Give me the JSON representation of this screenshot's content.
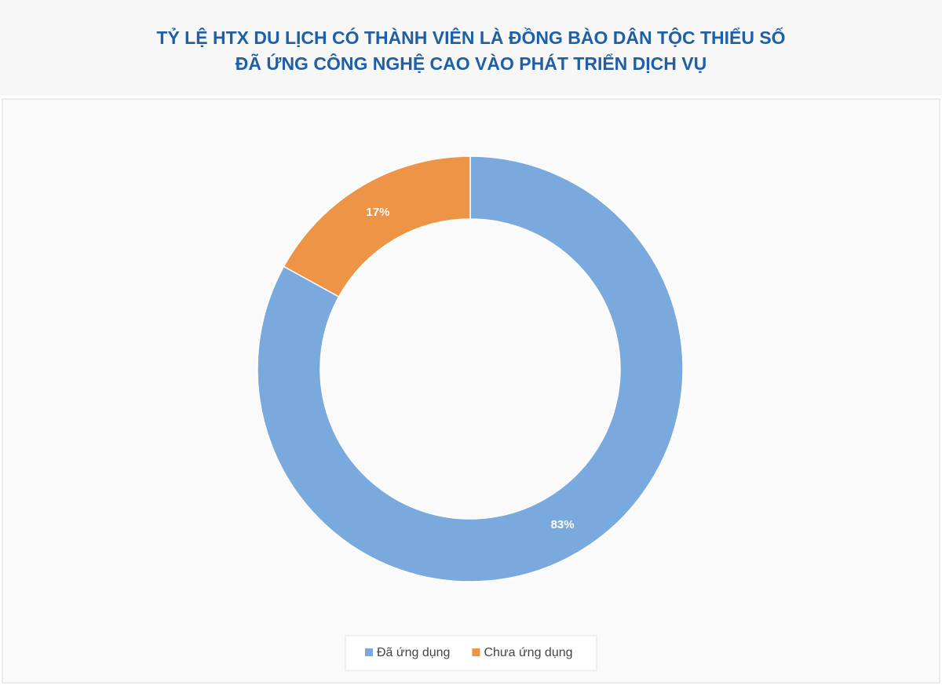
{
  "chart_data": {
    "type": "donut",
    "title": [
      "TỶ LỆ HTX DU LỊCH CÓ THÀNH VIÊN LÀ ĐỒNG BÀO DÂN TỘC THIỂU SỐ",
      "ĐÃ ỨNG CÔNG NGHỆ CAO VÀO PHÁT TRIỂN DỊCH VỤ"
    ],
    "categories": [
      "Đã ứng dụng",
      "Chưa ứng dụng"
    ],
    "values": [
      83,
      17
    ],
    "value_labels": [
      "83%",
      "17%"
    ],
    "colors": [
      "#7aaadd",
      "#ed9447"
    ],
    "legend": "bottom"
  }
}
